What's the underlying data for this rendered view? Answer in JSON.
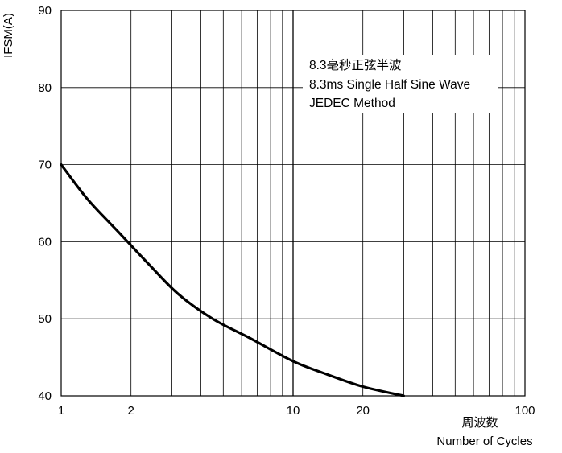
{
  "chart_data": {
    "type": "line",
    "xscale": "log",
    "xlim": [
      1,
      100
    ],
    "ylim": [
      40,
      90
    ],
    "x_ticks": [
      1,
      2,
      10,
      20,
      100
    ],
    "x_tick_labels": [
      "1",
      "2",
      "10",
      "20",
      "100"
    ],
    "y_ticks": [
      40,
      50,
      60,
      70,
      80,
      90
    ],
    "y_tick_labels": [
      "40",
      "50",
      "60",
      "70",
      "80",
      "90"
    ],
    "ylabel": "IFSM(A)",
    "xlabel_cn": "周波数",
    "xlabel": "Number of Cycles",
    "grid": true,
    "annotation": [
      "8.3毫秒正弦半波",
      "8.3ms Single Half Sine Wave",
      "JEDEC Method"
    ],
    "series": [
      {
        "x": [
          1,
          1.3,
          1.8,
          2.4,
          3.2,
          4.5,
          6.5,
          10,
          14,
          20,
          30
        ],
        "values": [
          70,
          65.5,
          61,
          57,
          53.2,
          50,
          47.5,
          44.5,
          42.8,
          41.2,
          40
        ]
      }
    ]
  }
}
